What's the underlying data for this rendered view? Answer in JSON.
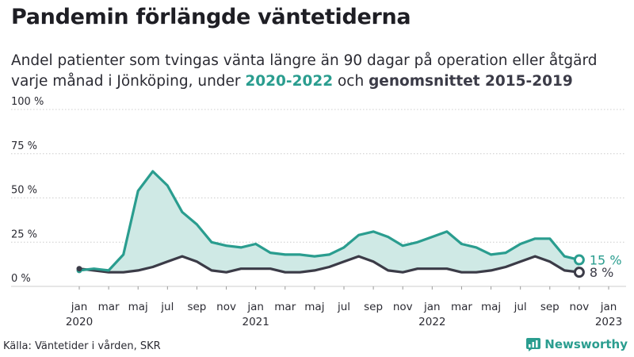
{
  "header": {
    "title": "Pandemin förlängde väntetiderna",
    "subtitle_line1": "Andel patienter som tvingas vänta längre än 90 dagar på operation eller åtgärd",
    "subtitle_line2_prefix": "varje månad i Jönköping, under ",
    "subtitle_highlight_recent": "2020-2022",
    "subtitle_mid": " och ",
    "subtitle_highlight_avg": "genomsnittet 2015-2019"
  },
  "footer": {
    "source": "Källa: Väntetider i vården, SKR",
    "brand": "Newsworthy"
  },
  "colors": {
    "recent": "#2a9d8f",
    "average": "#3b3b47",
    "fill": "#cfe9e5",
    "grid": "#cccccc"
  },
  "chart_data": {
    "type": "area",
    "ylim": [
      0,
      100
    ],
    "y_ticks": [
      0,
      25,
      50,
      75,
      100
    ],
    "y_tick_labels": [
      "0 %",
      "25 %",
      "50 %",
      "75 %",
      "100 %"
    ],
    "x_ticks": [
      {
        "month_index": 0,
        "label": "jan",
        "year": "2020"
      },
      {
        "month_index": 2,
        "label": "mar"
      },
      {
        "month_index": 4,
        "label": "maj"
      },
      {
        "month_index": 6,
        "label": "jul"
      },
      {
        "month_index": 8,
        "label": "sep"
      },
      {
        "month_index": 10,
        "label": "nov"
      },
      {
        "month_index": 12,
        "label": "jan",
        "year": "2021"
      },
      {
        "month_index": 14,
        "label": "mar"
      },
      {
        "month_index": 16,
        "label": "maj"
      },
      {
        "month_index": 18,
        "label": "jul"
      },
      {
        "month_index": 20,
        "label": "sep"
      },
      {
        "month_index": 22,
        "label": "nov"
      },
      {
        "month_index": 24,
        "label": "jan",
        "year": "2022"
      },
      {
        "month_index": 26,
        "label": "mar"
      },
      {
        "month_index": 28,
        "label": "maj"
      },
      {
        "month_index": 30,
        "label": "jul"
      },
      {
        "month_index": 32,
        "label": "sep"
      },
      {
        "month_index": 34,
        "label": "nov"
      },
      {
        "month_index": 36,
        "label": "jan",
        "year": "2023"
      }
    ],
    "x_domain": [
      0,
      36
    ],
    "series": [
      {
        "name": "2020-2022",
        "values": [
          9,
          10,
          9,
          18,
          54,
          65,
          57,
          42,
          35,
          25,
          23,
          22,
          24,
          19,
          18,
          18,
          17,
          18,
          22,
          29,
          31,
          28,
          23,
          25,
          28,
          31,
          24,
          22,
          18,
          19,
          24,
          27,
          27,
          17,
          15
        ],
        "end_label": "15 %"
      },
      {
        "name": "genomsnittet 2015-2019",
        "values": [
          10,
          9,
          8,
          8,
          9,
          11,
          14,
          17,
          14,
          9,
          8,
          10,
          10,
          10,
          8,
          8,
          9,
          11,
          14,
          17,
          14,
          9,
          8,
          10,
          10,
          10,
          8,
          8,
          9,
          11,
          14,
          17,
          14,
          9,
          8
        ],
        "end_label": "8 %"
      }
    ]
  }
}
